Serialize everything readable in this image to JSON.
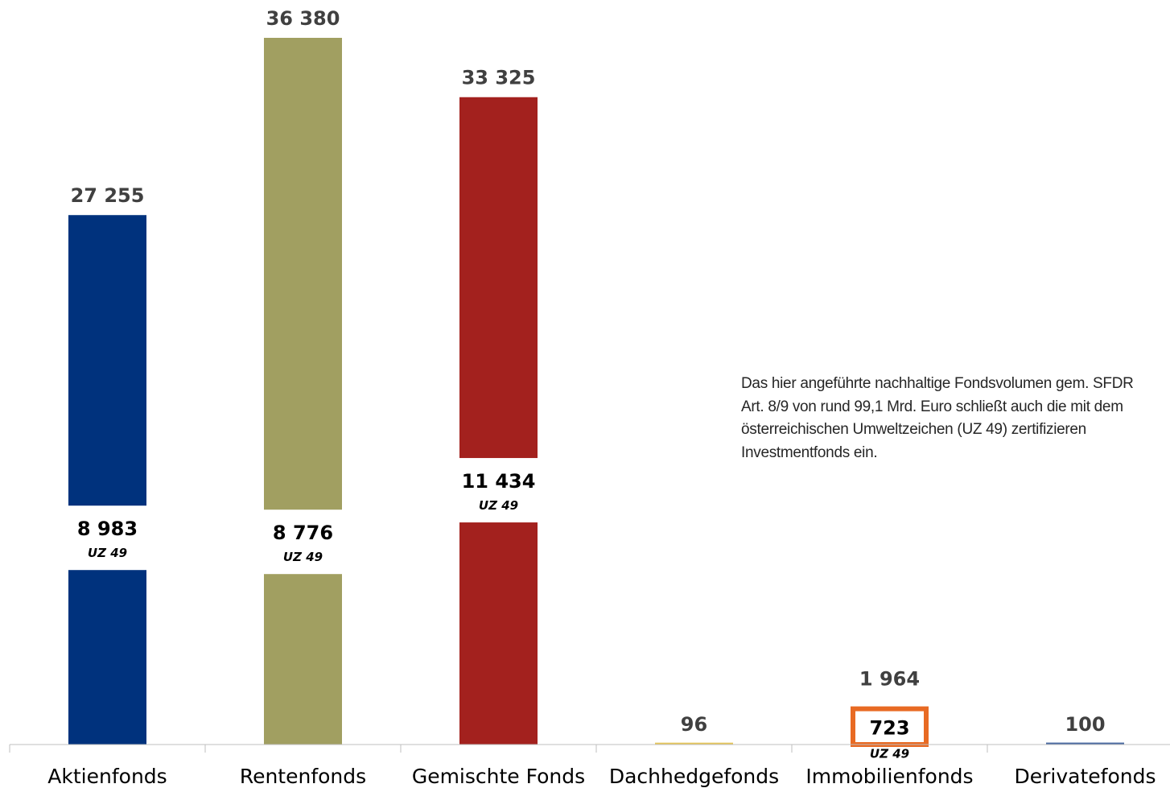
{
  "chart_data": {
    "type": "bar",
    "categories": [
      "Aktienfonds",
      "Rentenfonds",
      "Gemischte Fonds",
      "Dachhedgefonds",
      "Immobilienfonds",
      "Derivatefonds"
    ],
    "series": [
      {
        "values": [
          27255,
          36380,
          33325,
          96,
          1964,
          100
        ],
        "colors": [
          "#00327d",
          "#a19f61",
          "#a3211e",
          "#e6c65a",
          "#e86a23",
          "#4a6aa0"
        ]
      }
    ],
    "uz49": {
      "values": [
        8983,
        8776,
        11434,
        null,
        723,
        null
      ],
      "display": [
        "8 983",
        "8 776",
        "11 434",
        "",
        "723",
        ""
      ],
      "tag": "UZ 49"
    },
    "value_labels": [
      "27 255",
      "36 380",
      "33 325",
      "96",
      "1 964",
      "100"
    ],
    "ylim": [
      0,
      36380
    ],
    "grid": false,
    "legend": "none",
    "highlight_color": "#e86a23"
  },
  "note": "Das hier angeführte nachhaltige Fondsvolumen gem. SFDR\nArt. 8/9 von rund 99,1 Mrd. Euro schließt auch die mit dem\nösterreichischen Umweltzeichen (UZ 49) zertifizieren\nInvestmentfonds ein."
}
